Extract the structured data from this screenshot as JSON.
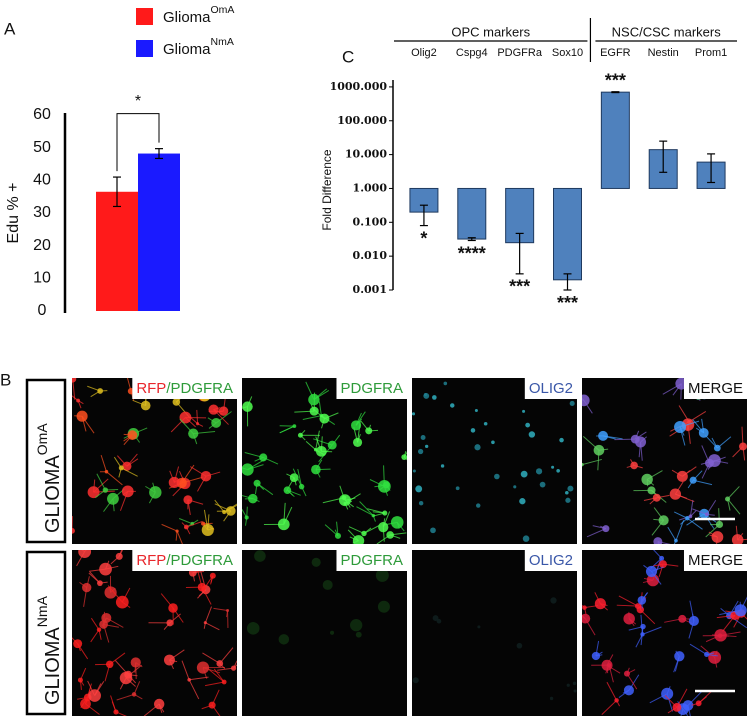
{
  "panel_labels": [
    "A",
    "B",
    "C"
  ],
  "chart_data": [
    {
      "type": "bar",
      "categories": [
        null
      ],
      "series": [
        {
          "name": "Glioma",
          "superscript": "OmA",
          "color": "#ff1a1a",
          "values": [
            36.5
          ],
          "errors": [
            4.5
          ]
        },
        {
          "name": "Glioma",
          "superscript": "NmA",
          "color": "#1a1aff",
          "values": [
            48.2
          ],
          "errors": [
            1.5
          ]
        }
      ],
      "ylabel": "Edu % +",
      "ylim": [
        0,
        60
      ],
      "yticks": [
        0,
        10,
        20,
        30,
        40,
        50,
        60
      ],
      "significance": "*"
    },
    {
      "type": "logbar",
      "log_scale": true,
      "group_labels": [
        "OPC markers",
        "NSC/CSC markers"
      ],
      "categories": [
        "Olig2",
        "Cspg4",
        "PDGFRa",
        "Sox10",
        "EGFR",
        "Nestin",
        "Prom1"
      ],
      "values": [
        0.2,
        0.032,
        0.025,
        0.002,
        700,
        14,
        6
      ],
      "errors": [
        0.12,
        0.003,
        0.022,
        0.001,
        20,
        11,
        4.5
      ],
      "annotations": [
        "*",
        "****",
        "***",
        "***",
        "***",
        null,
        null
      ],
      "color": "#4f81bd",
      "ylabel": "Fold Difference",
      "ylim": [
        0.001,
        1600
      ],
      "yticks": [
        0.001,
        {
          "value": 0.01,
          "label": "0.010"
        },
        {
          "value": 0.1,
          "label": "0.100"
        },
        {
          "value": 1,
          "label": "1.000"
        },
        {
          "value": 10,
          "label": "10.000"
        },
        {
          "value": 100,
          "label": "100.000"
        },
        {
          "value": 1000,
          "label": "1000.000"
        }
      ]
    }
  ],
  "panel_b": {
    "rows": [
      {
        "label": "GLIOMA",
        "superscript": "OmA"
      },
      {
        "label": "GLIOMA",
        "superscript": "NmA"
      }
    ],
    "columns": [
      [
        "RFP",
        "/PDGFRA"
      ],
      [
        "PDGFRA"
      ],
      [
        "OLIG2"
      ],
      [
        "MERGE"
      ]
    ]
  }
}
